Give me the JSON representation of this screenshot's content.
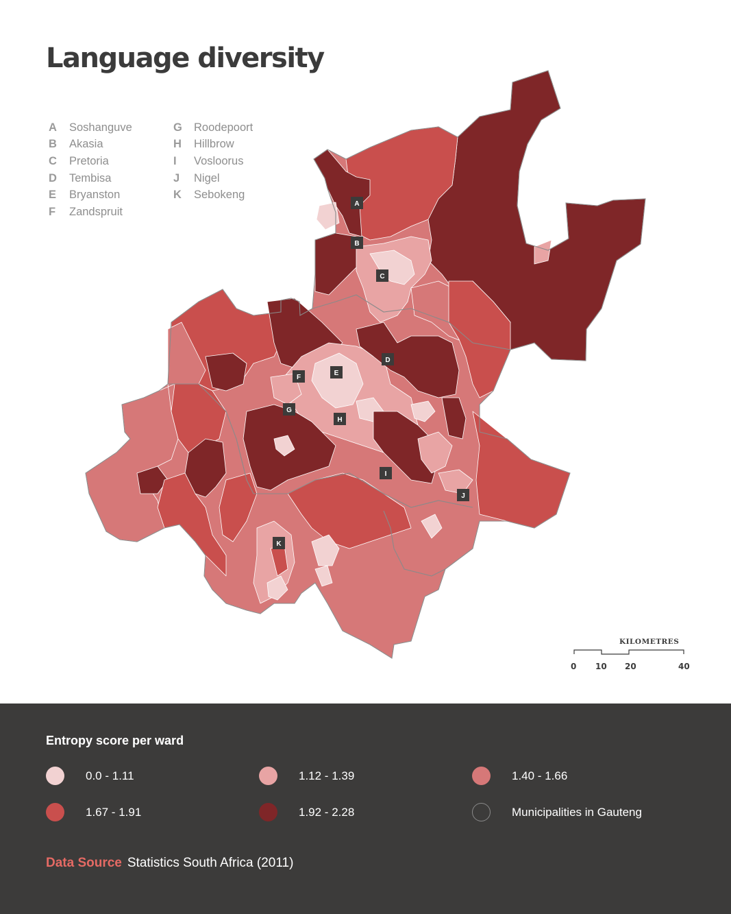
{
  "title": "Language diversity",
  "places": [
    {
      "letter": "A",
      "name": "Soshanguve"
    },
    {
      "letter": "B",
      "name": "Akasia"
    },
    {
      "letter": "C",
      "name": "Pretoria"
    },
    {
      "letter": "D",
      "name": "Tembisa"
    },
    {
      "letter": "E",
      "name": "Bryanston"
    },
    {
      "letter": "F",
      "name": "Zandspruit"
    },
    {
      "letter": "G",
      "name": "Roodepoort"
    },
    {
      "letter": "H",
      "name": "Hillbrow"
    },
    {
      "letter": "I",
      "name": "Vosloorus"
    },
    {
      "letter": "J",
      "name": "Nigel"
    },
    {
      "letter": "K",
      "name": "Sebokeng"
    }
  ],
  "scale": {
    "title": "KILOMETRES",
    "ticks": [
      "0",
      "10",
      "20",
      "40"
    ]
  },
  "legend": {
    "title": "Entropy score per ward",
    "items": [
      {
        "label": "0.0 - 1.11",
        "color": "#f2d2d2"
      },
      {
        "label": "1.12 - 1.39",
        "color": "#e8a4a4"
      },
      {
        "label": "1.40 - 1.66",
        "color": "#d67878"
      },
      {
        "label": "1.67 - 1.91",
        "color": "#c94f4d"
      },
      {
        "label": "1.92 - 2.28",
        "color": "#7f2628"
      },
      {
        "label": "Municipalities in Gauteng",
        "color": "outline"
      }
    ]
  },
  "source": {
    "label": "Data Source",
    "value": "Statistics South Africa (2011)"
  },
  "colors": {
    "outline": "#8a8a8a",
    "footer_bg": "#3c3b3a",
    "accent": "#e56a64"
  }
}
